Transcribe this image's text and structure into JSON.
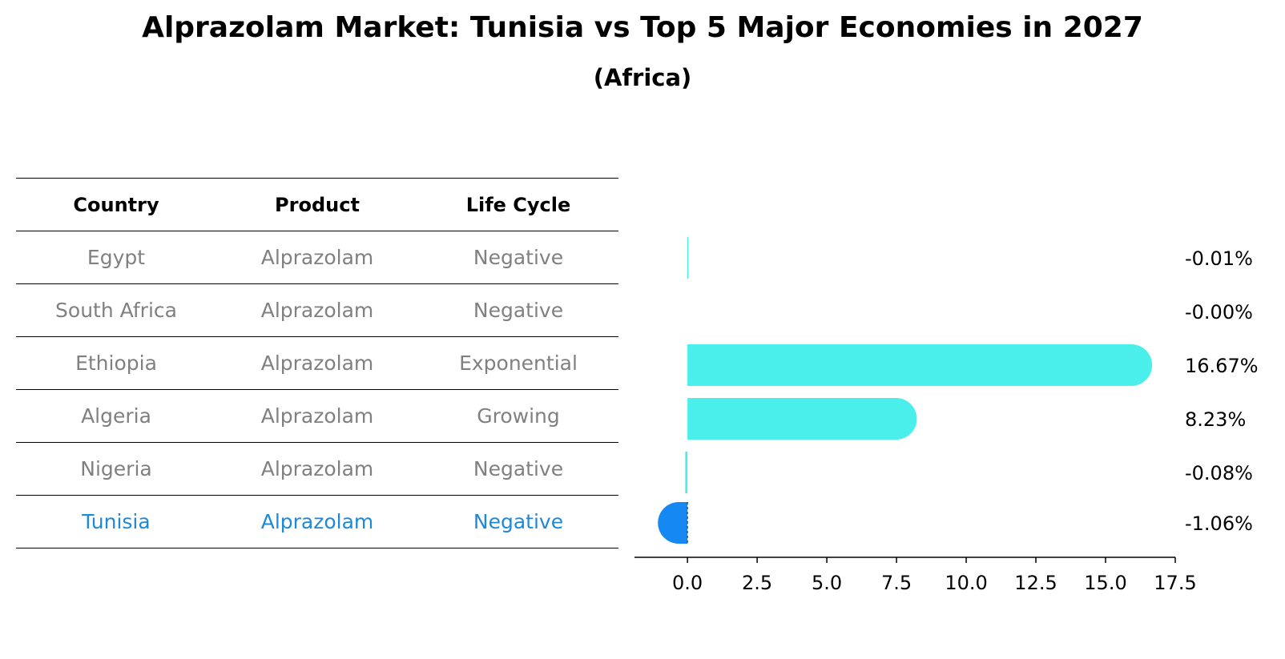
{
  "title": "Alprazolam Market: Tunisia vs Top 5 Major Economies in 2027",
  "subtitle": "(Africa)",
  "table": {
    "headers": [
      "Country",
      "Product",
      "Life Cycle"
    ],
    "rows": [
      {
        "country": "Egypt",
        "product": "Alprazolam",
        "life_cycle": "Negative"
      },
      {
        "country": "South Africa",
        "product": "Alprazolam",
        "life_cycle": "Negative"
      },
      {
        "country": "Ethiopia",
        "product": "Alprazolam",
        "life_cycle": "Exponential"
      },
      {
        "country": "Algeria",
        "product": "Alprazolam",
        "life_cycle": "Growing"
      },
      {
        "country": "Nigeria",
        "product": "Alprazolam",
        "life_cycle": "Negative"
      },
      {
        "country": "Tunisia",
        "product": "Alprazolam",
        "life_cycle": "Negative"
      }
    ]
  },
  "chart_data": {
    "type": "bar",
    "orientation": "horizontal",
    "categories": [
      "Egypt",
      "South Africa",
      "Ethiopia",
      "Algeria",
      "Nigeria",
      "Tunisia"
    ],
    "values": [
      -0.01,
      -0.0,
      16.67,
      8.23,
      -0.08,
      -1.06
    ],
    "value_labels": [
      "-0.01%",
      "-0.00%",
      "16.67%",
      "8.23%",
      "-0.08%",
      "-1.06%"
    ],
    "xlim": [
      -1.9,
      17.5
    ],
    "xticks": [
      0.0,
      2.5,
      5.0,
      7.5,
      10.0,
      12.5,
      15.0,
      17.5
    ],
    "xtick_labels": [
      "0.0",
      "2.5",
      "5.0",
      "7.5",
      "10.0",
      "12.5",
      "15.0",
      "17.5"
    ],
    "highlight": "Tunisia",
    "colors": {
      "default": "#4aeeea",
      "highlight": "#1688f2"
    },
    "grid": false
  }
}
